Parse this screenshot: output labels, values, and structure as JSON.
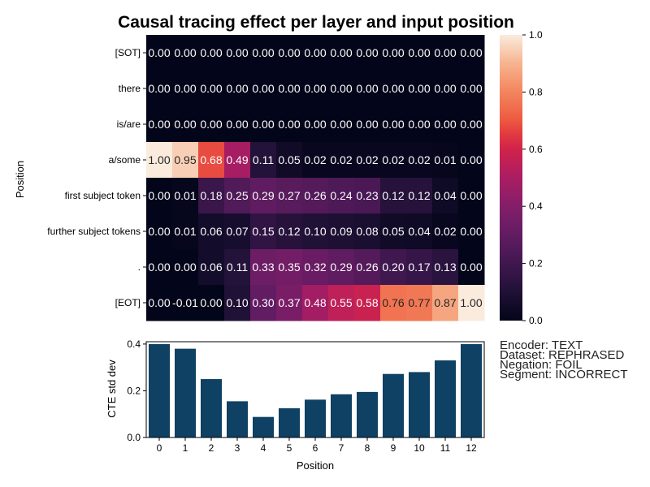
{
  "chart_data": [
    {
      "type": "heatmap",
      "title": "Causal tracing effect per layer and input position",
      "ylabel": "Position",
      "xlabel": "",
      "rows": [
        "[SOT]",
        "there",
        "is/are",
        "a/some",
        "first subject token",
        "further subject tokens",
        ".",
        "[EOT]"
      ],
      "columns": [
        "0",
        "1",
        "2",
        "3",
        "4",
        "5",
        "6",
        "7",
        "8",
        "9",
        "10",
        "11",
        "12"
      ],
      "values": [
        [
          0.0,
          0.0,
          0.0,
          0.0,
          0.0,
          0.0,
          0.0,
          0.0,
          0.0,
          0.0,
          0.0,
          0.0,
          0.0
        ],
        [
          0.0,
          0.0,
          0.0,
          0.0,
          0.0,
          0.0,
          0.0,
          0.0,
          0.0,
          0.0,
          0.0,
          0.0,
          0.0
        ],
        [
          0.0,
          0.0,
          0.0,
          0.0,
          0.0,
          0.0,
          0.0,
          0.0,
          0.0,
          0.0,
          0.0,
          0.0,
          0.0
        ],
        [
          1.0,
          0.95,
          0.68,
          0.49,
          0.11,
          0.05,
          0.02,
          0.02,
          0.02,
          0.02,
          0.02,
          0.01,
          0.0
        ],
        [
          0.0,
          0.01,
          0.18,
          0.25,
          0.29,
          0.27,
          0.26,
          0.24,
          0.23,
          0.12,
          0.12,
          0.04,
          0.0
        ],
        [
          0.0,
          0.01,
          0.06,
          0.07,
          0.15,
          0.12,
          0.1,
          0.09,
          0.08,
          0.05,
          0.04,
          0.02,
          0.0
        ],
        [
          -0.0,
          -0.0,
          0.06,
          0.11,
          0.33,
          0.35,
          0.32,
          0.29,
          0.26,
          0.2,
          0.17,
          0.13,
          0.0
        ],
        [
          0.0,
          -0.01,
          -0.0,
          0.1,
          0.3,
          0.37,
          0.48,
          0.55,
          0.58,
          0.76,
          0.77,
          0.87,
          1.0
        ]
      ],
      "colorbar": {
        "range": [
          0.0,
          1.0
        ],
        "ticks": [
          "0.0",
          "0.2",
          "0.4",
          "0.6",
          "0.8",
          "1.0"
        ]
      }
    },
    {
      "type": "bar",
      "categories": [
        "0",
        "1",
        "2",
        "3",
        "4",
        "5",
        "6",
        "7",
        "8",
        "9",
        "10",
        "11",
        "12"
      ],
      "values": [
        0.4,
        0.38,
        0.25,
        0.155,
        0.088,
        0.125,
        0.162,
        0.185,
        0.195,
        0.272,
        0.28,
        0.33,
        0.4
      ],
      "xlabel": "Position",
      "ylabel": "CTE std dev",
      "ylim": [
        0.0,
        0.41
      ],
      "yticks": [
        "0.0",
        "0.2",
        "0.4"
      ],
      "bar_color": "#0e4163"
    }
  ],
  "info": {
    "encoder": "Encoder: TEXT",
    "dataset": "Dataset: REPHRASED",
    "negation": "Negation: FOIL",
    "segment": "Segment: INCORRECT"
  }
}
